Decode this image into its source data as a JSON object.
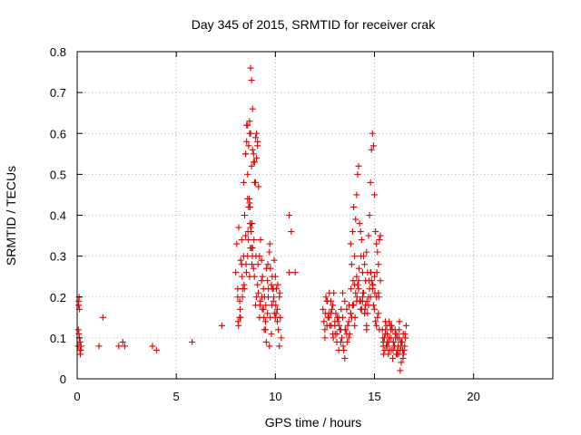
{
  "chart_data": {
    "type": "scatter",
    "title": "Day 345 of 2015, SRMTID for receiver crak",
    "xlabel": "GPS time / hours",
    "ylabel": "SRMTID / TECUs",
    "xlim": [
      0,
      24
    ],
    "ylim": [
      0,
      0.8
    ],
    "xticks": [
      0,
      5,
      10,
      15,
      20
    ],
    "yticks": [
      0,
      0.1,
      0.2,
      0.3,
      0.4,
      0.5,
      0.6,
      0.7,
      0.8
    ],
    "xtick_labels": [
      "0",
      "5",
      "10",
      "15",
      "20"
    ],
    "ytick_labels": [
      "0",
      "0.1",
      "0.2",
      "0.3",
      "0.4",
      "0.5",
      "0.6",
      "0.7",
      "0.8"
    ],
    "grid": true,
    "marker": "+",
    "marker_color": "#e00000",
    "series": [
      {
        "name": "SRMTID",
        "x": [
          0.05,
          0.08,
          0.1,
          0.12,
          0.15,
          0.18,
          0.2,
          0.06,
          0.11,
          0.14,
          0.09,
          0.16,
          0.07,
          0.13,
          1.1,
          1.3,
          2.1,
          2.3,
          2.4,
          3.8,
          4.0,
          5.8,
          7.3,
          8.0,
          8.05,
          8.1,
          8.15,
          8.2,
          8.25,
          8.3,
          8.35,
          8.4,
          8.45,
          8.5,
          8.55,
          8.6,
          8.65,
          8.7,
          8.75,
          8.8,
          8.85,
          8.9,
          8.95,
          9.0,
          9.05,
          9.1,
          9.15,
          9.2,
          9.25,
          9.3,
          9.35,
          9.4,
          9.45,
          9.5,
          9.55,
          9.6,
          9.65,
          9.7,
          9.75,
          9.8,
          9.85,
          9.9,
          9.95,
          10.0,
          10.05,
          10.1,
          10.15,
          10.2,
          10.25,
          10.3,
          8.1,
          8.2,
          8.3,
          8.4,
          8.5,
          8.6,
          8.7,
          8.8,
          8.9,
          9.0,
          9.1,
          9.2,
          9.3,
          9.4,
          9.5,
          9.6,
          9.7,
          9.8,
          9.9,
          10.0,
          10.1,
          10.2,
          8.12,
          8.22,
          8.32,
          8.42,
          8.52,
          8.62,
          8.72,
          8.82,
          8.92,
          9.02,
          9.12,
          9.22,
          9.32,
          9.42,
          9.52,
          9.62,
          9.72,
          9.82,
          9.92,
          10.02,
          10.12,
          10.22,
          8.14,
          8.24,
          8.34,
          8.44,
          8.54,
          8.64,
          8.74,
          8.84,
          8.94,
          9.04,
          9.14,
          9.24,
          9.34,
          9.44,
          9.54,
          9.64,
          9.74,
          9.84,
          9.94,
          10.04,
          8.5,
          8.55,
          8.6,
          8.65,
          8.7,
          8.75,
          8.8,
          8.85,
          8.9,
          8.95,
          9.0,
          9.05,
          9.1,
          8.6,
          8.7,
          8.8,
          8.75,
          8.72,
          8.78,
          8.68,
          8.82,
          8.85,
          10.7,
          10.8,
          10.7,
          11.0,
          12.4,
          12.5,
          12.6,
          12.7,
          12.8,
          12.9,
          13.0,
          13.1,
          13.2,
          13.3,
          13.4,
          13.5,
          13.6,
          13.7,
          13.8,
          13.9,
          14.0,
          14.1,
          14.2,
          14.3,
          14.4,
          14.5,
          14.6,
          14.7,
          14.8,
          14.9,
          15.0,
          15.1,
          15.2,
          15.3,
          12.45,
          12.55,
          12.65,
          12.75,
          12.85,
          12.95,
          13.05,
          13.15,
          13.25,
          13.35,
          13.45,
          13.55,
          13.65,
          13.75,
          13.85,
          13.95,
          14.05,
          14.15,
          14.25,
          14.35,
          14.45,
          14.55,
          14.65,
          14.75,
          14.85,
          14.95,
          15.05,
          15.15,
          15.25,
          12.5,
          12.6,
          12.7,
          12.8,
          12.9,
          13.0,
          13.1,
          13.2,
          13.3,
          13.4,
          13.5,
          13.6,
          13.7,
          13.8,
          13.9,
          14.0,
          14.1,
          14.2,
          14.3,
          14.4,
          14.5,
          14.6,
          14.7,
          14.8,
          14.9,
          15.0,
          15.1,
          15.2,
          12.52,
          12.62,
          12.72,
          12.82,
          12.92,
          13.02,
          13.12,
          13.22,
          13.32,
          13.42,
          13.52,
          13.62,
          13.72,
          13.82,
          13.92,
          14.02,
          14.12,
          14.22,
          14.32,
          14.42,
          14.52,
          14.62,
          14.72,
          14.82,
          14.92,
          15.02,
          15.12,
          15.22,
          13.8,
          13.85,
          13.9,
          13.95,
          14.0,
          14.05,
          14.1,
          14.15,
          14.2,
          14.25,
          14.3,
          14.35,
          14.4,
          14.45,
          14.5,
          14.55,
          14.6,
          14.65,
          14.7,
          14.75,
          14.8,
          14.85,
          14.9,
          14.95,
          15.0,
          15.05,
          15.1,
          15.15,
          15.2,
          15.25,
          15.3,
          15.4,
          15.45,
          15.5,
          15.55,
          15.6,
          15.65,
          15.7,
          15.75,
          15.8,
          15.85,
          15.9,
          15.95,
          16.0,
          16.05,
          16.1,
          16.15,
          16.2,
          16.25,
          16.3,
          16.35,
          16.4,
          16.45,
          16.5,
          16.55,
          16.6,
          15.42,
          15.52,
          15.62,
          15.72,
          15.82,
          15.92,
          16.02,
          16.12,
          16.22,
          16.32,
          16.42,
          16.52,
          15.44,
          15.54,
          15.64,
          15.74,
          15.84,
          15.94,
          16.04,
          16.14,
          16.24,
          16.34,
          16.44,
          16.54,
          15.46,
          15.56,
          15.66,
          15.76,
          15.86,
          15.96,
          16.06,
          16.16,
          16.26,
          16.36,
          16.46,
          16.56,
          16.3
        ],
        "y": [
          0.08,
          0.19,
          0.2,
          0.17,
          0.09,
          0.07,
          0.08,
          0.12,
          0.1,
          0.07,
          0.11,
          0.06,
          0.18,
          0.09,
          0.08,
          0.15,
          0.08,
          0.09,
          0.08,
          0.08,
          0.07,
          0.09,
          0.13,
          0.26,
          0.33,
          0.2,
          0.37,
          0.15,
          0.29,
          0.34,
          0.22,
          0.48,
          0.4,
          0.55,
          0.62,
          0.5,
          0.42,
          0.6,
          0.76,
          0.73,
          0.66,
          0.55,
          0.53,
          0.48,
          0.6,
          0.58,
          0.47,
          0.3,
          0.34,
          0.29,
          0.25,
          0.22,
          0.2,
          0.14,
          0.27,
          0.24,
          0.22,
          0.31,
          0.27,
          0.23,
          0.22,
          0.19,
          0.16,
          0.25,
          0.22,
          0.17,
          0.12,
          0.2,
          0.15,
          0.1,
          0.22,
          0.19,
          0.28,
          0.3,
          0.35,
          0.3,
          0.25,
          0.32,
          0.27,
          0.18,
          0.23,
          0.15,
          0.24,
          0.17,
          0.12,
          0.16,
          0.08,
          0.11,
          0.22,
          0.15,
          0.14,
          0.08,
          0.14,
          0.17,
          0.25,
          0.23,
          0.28,
          0.36,
          0.38,
          0.28,
          0.34,
          0.3,
          0.28,
          0.18,
          0.2,
          0.15,
          0.18,
          0.28,
          0.33,
          0.18,
          0.2,
          0.18,
          0.23,
          0.21,
          0.13,
          0.15,
          0.2,
          0.22,
          0.26,
          0.34,
          0.32,
          0.3,
          0.25,
          0.2,
          0.21,
          0.19,
          0.17,
          0.12,
          0.09,
          0.2,
          0.15,
          0.25,
          0.29,
          0.16,
          0.55,
          0.58,
          0.62,
          0.57,
          0.63,
          0.6,
          0.52,
          0.56,
          0.53,
          0.48,
          0.59,
          0.54,
          0.57,
          0.44,
          0.43,
          0.38,
          0.37,
          0.42,
          0.36,
          0.44,
          0.38,
          0.32,
          0.4,
          0.36,
          0.26,
          0.26,
          0.17,
          0.12,
          0.19,
          0.15,
          0.16,
          0.18,
          0.13,
          0.11,
          0.15,
          0.09,
          0.21,
          0.19,
          0.17,
          0.14,
          0.16,
          0.18,
          0.23,
          0.25,
          0.22,
          0.19,
          0.2,
          0.16,
          0.13,
          0.2,
          0.26,
          0.23,
          0.17,
          0.13,
          0.21,
          0.24,
          0.14,
          0.2,
          0.15,
          0.13,
          0.17,
          0.21,
          0.16,
          0.14,
          0.12,
          0.1,
          0.07,
          0.12,
          0.13,
          0.11,
          0.15,
          0.18,
          0.21,
          0.23,
          0.19,
          0.17,
          0.21,
          0.18,
          0.16,
          0.22,
          0.24,
          0.18,
          0.14,
          0.15,
          0.12,
          0.1,
          0.13,
          0.16,
          0.19,
          0.11,
          0.14,
          0.09,
          0.07,
          0.12,
          0.15,
          0.05,
          0.11,
          0.1,
          0.16,
          0.18,
          0.13,
          0.19,
          0.24,
          0.17,
          0.19,
          0.16,
          0.12,
          0.18,
          0.2,
          0.22,
          0.25,
          0.2,
          0.16,
          0.16,
          0.19,
          0.21,
          0.13,
          0.1,
          0.11,
          0.15,
          0.13,
          0.17,
          0.08,
          0.12,
          0.09,
          0.18,
          0.22,
          0.24,
          0.15,
          0.2,
          0.27,
          0.3,
          0.21,
          0.17,
          0.19,
          0.24,
          0.26,
          0.23,
          0.21,
          0.26,
          0.2,
          0.33,
          0.28,
          0.36,
          0.42,
          0.3,
          0.39,
          0.45,
          0.5,
          0.52,
          0.38,
          0.36,
          0.34,
          0.26,
          0.3,
          0.28,
          0.24,
          0.31,
          0.26,
          0.35,
          0.4,
          0.48,
          0.56,
          0.6,
          0.57,
          0.45,
          0.36,
          0.33,
          0.31,
          0.28,
          0.34,
          0.35,
          0.12,
          0.09,
          0.1,
          0.14,
          0.08,
          0.11,
          0.06,
          0.1,
          0.13,
          0.07,
          0.12,
          0.09,
          0.08,
          0.11,
          0.06,
          0.1,
          0.08,
          0.12,
          0.07,
          0.04,
          0.09,
          0.11,
          0.07,
          0.1,
          0.13,
          0.1,
          0.07,
          0.13,
          0.09,
          0.12,
          0.05,
          0.08,
          0.11,
          0.06,
          0.09,
          0.07,
          0.08,
          0.08,
          0.11,
          0.09,
          0.14,
          0.1,
          0.07,
          0.12,
          0.06,
          0.1,
          0.08,
          0.05,
          0.11,
          0.06,
          0.12,
          0.08,
          0.07,
          0.13,
          0.09,
          0.1,
          0.07,
          0.14,
          0.09,
          0.06,
          0.1,
          0.02
        ]
      }
    ]
  }
}
